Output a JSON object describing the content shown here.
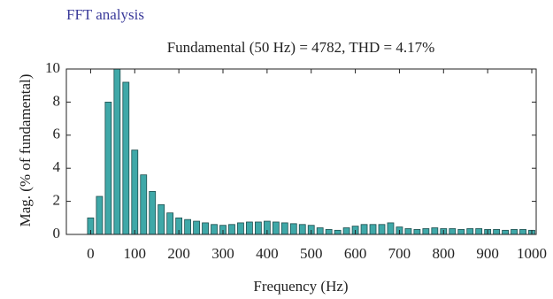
{
  "chart_data": {
    "type": "bar",
    "supertitle": "FFT analysis",
    "title": "Fundamental (50 Hz) = 4782, THD = 4.17%",
    "xlabel": "Frequency (Hz)",
    "ylabel": "Mag. (% of fundamental)",
    "x": [
      0,
      20,
      40,
      60,
      80,
      100,
      120,
      140,
      160,
      180,
      200,
      220,
      240,
      260,
      280,
      300,
      320,
      340,
      360,
      380,
      400,
      420,
      440,
      460,
      480,
      500,
      520,
      540,
      560,
      580,
      600,
      620,
      640,
      660,
      680,
      700,
      720,
      740,
      760,
      780,
      800,
      820,
      840,
      860,
      880,
      900,
      920,
      940,
      960,
      980,
      1000
    ],
    "values": [
      1.0,
      2.3,
      8.0,
      10,
      9.2,
      5.1,
      3.6,
      2.6,
      1.8,
      1.3,
      1.0,
      0.9,
      0.8,
      0.7,
      0.6,
      0.55,
      0.6,
      0.7,
      0.75,
      0.75,
      0.8,
      0.75,
      0.7,
      0.65,
      0.6,
      0.55,
      0.4,
      0.3,
      0.25,
      0.4,
      0.5,
      0.6,
      0.6,
      0.6,
      0.7,
      0.45,
      0.35,
      0.3,
      0.35,
      0.4,
      0.35,
      0.35,
      0.3,
      0.35,
      0.35,
      0.3,
      0.3,
      0.25,
      0.3,
      0.3,
      0.25
    ],
    "color": "#3fa8a8",
    "xlim": [
      -55,
      1010
    ],
    "xticks": [
      0,
      100,
      200,
      300,
      400,
      500,
      600,
      700,
      800,
      900,
      1000
    ],
    "ylim": [
      0,
      10
    ],
    "yticks": [
      0,
      2,
      4,
      6,
      8,
      10
    ]
  }
}
